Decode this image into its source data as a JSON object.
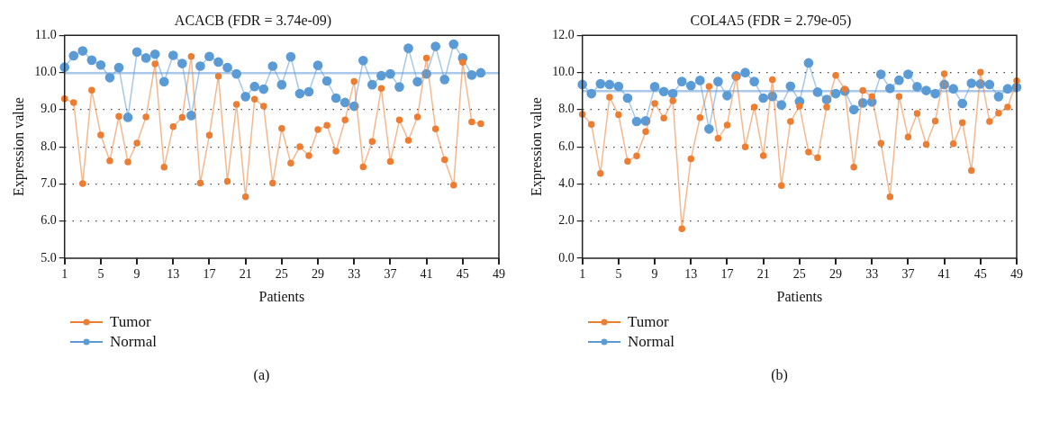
{
  "chart_data": [
    {
      "type": "line",
      "title": "ACACB (FDR = 3.74e-09)",
      "xlabel": "Patients",
      "ylabel": "Expression value",
      "categories": [
        "1",
        null,
        null,
        null,
        "5",
        null,
        null,
        null,
        "9",
        null,
        null,
        null,
        "13",
        null,
        null,
        null,
        "17",
        null,
        null,
        null,
        "21",
        null,
        null,
        null,
        "25",
        null,
        null,
        null,
        "29",
        null,
        null,
        null,
        "33",
        null,
        null,
        null,
        "37",
        null,
        null,
        null,
        "41",
        null,
        null,
        null,
        "45",
        null,
        null,
        null,
        "49"
      ],
      "series": [
        {
          "name": "Tumor",
          "color": "#ed7d31",
          "values": [
            9.29,
            9.19,
            7.01,
            9.52,
            8.32,
            7.62,
            8.82,
            7.59,
            8.1,
            8.8,
            10.23,
            7.45,
            8.54,
            8.79,
            10.43,
            7.02,
            8.31,
            9.9,
            7.07,
            9.14,
            6.65,
            9.28,
            9.09,
            7.02,
            8.49,
            7.56,
            8.0,
            7.76,
            8.46,
            8.58,
            7.88,
            8.72,
            9.76,
            7.46,
            8.14,
            9.57,
            7.6,
            8.72,
            8.17,
            8.8,
            10.39,
            8.48,
            7.65,
            6.97,
            10.27,
            8.67,
            8.62,
            null,
            null
          ]
        },
        {
          "name": "Normal",
          "color": "#5b9bd5",
          "values": [
            10.14,
            10.45,
            10.58,
            10.33,
            10.2,
            9.86,
            10.13,
            8.79,
            10.55,
            10.39,
            10.49,
            9.75,
            10.46,
            10.24,
            8.84,
            10.17,
            10.43,
            10.28,
            10.13,
            9.96,
            9.35,
            9.62,
            9.55,
            10.17,
            9.67,
            10.42,
            9.43,
            9.48,
            10.19,
            9.77,
            9.31,
            9.19,
            9.09,
            10.32,
            9.67,
            9.91,
            9.96,
            9.61,
            10.65,
            9.75,
            9.96,
            10.7,
            9.81,
            10.76,
            10.39,
            9.93,
            9.99,
            null,
            null
          ]
        }
      ],
      "ylim": [
        5,
        11
      ],
      "yticks": [
        {
          "value": 5,
          "label": "5.0"
        },
        {
          "value": 6,
          "label": "6.0"
        },
        {
          "value": 7,
          "label": "7.0"
        },
        {
          "value": 8,
          "label": "8.0"
        },
        {
          "value": 9,
          "label": "9.0"
        },
        {
          "value": 10,
          "label": "10.0"
        },
        {
          "value": 11,
          "label": "11.0"
        }
      ],
      "ref_lines": [
        {
          "axis": "y",
          "value": 9.98,
          "color": "#a9c8ea"
        }
      ],
      "grid": "y",
      "legend": "bottom left",
      "marker": "circle",
      "annotations": [
        "(a)"
      ]
    },
    {
      "type": "line",
      "title": "COL4A5 (FDR = 2.79e-05)",
      "xlabel": "Patients",
      "ylabel": "Expression value",
      "categories": [
        "1",
        null,
        null,
        null,
        "5",
        null,
        null,
        null,
        "9",
        null,
        null,
        null,
        "13",
        null,
        null,
        null,
        "17",
        null,
        null,
        null,
        "21",
        null,
        null,
        null,
        "25",
        null,
        null,
        null,
        "29",
        null,
        null,
        null,
        "33",
        null,
        null,
        null,
        "37",
        null,
        null,
        null,
        "41",
        null,
        null,
        null,
        "45",
        null,
        null,
        null,
        "49"
      ],
      "series": [
        {
          "name": "Tumor",
          "color": "#ed7d31",
          "values": [
            7.75,
            7.2,
            4.57,
            8.67,
            7.72,
            5.22,
            5.51,
            6.81,
            8.33,
            7.54,
            8.48,
            1.59,
            5.35,
            7.57,
            9.25,
            6.45,
            7.17,
            9.75,
            5.99,
            8.13,
            5.52,
            9.61,
            3.91,
            7.36,
            8.19,
            5.72,
            5.41,
            8.14,
            9.84,
            9.1,
            4.9,
            9.03,
            8.71,
            6.19,
            3.3,
            8.71,
            6.52,
            7.8,
            6.13,
            7.39,
            9.93,
            6.16,
            7.3,
            4.72,
            10.01,
            7.36,
            7.81,
            8.14,
            9.55
          ]
        },
        {
          "name": "Normal",
          "color": "#5b9bd5",
          "values": [
            9.35,
            8.86,
            9.39,
            9.35,
            9.25,
            8.62,
            7.36,
            7.39,
            9.23,
            8.97,
            8.86,
            9.51,
            9.29,
            9.57,
            6.96,
            9.51,
            8.75,
            9.81,
            9.99,
            9.51,
            8.62,
            8.71,
            8.25,
            9.26,
            8.44,
            10.51,
            8.94,
            8.54,
            8.86,
            9.0,
            8.0,
            8.36,
            8.41,
            9.9,
            9.14,
            9.58,
            9.9,
            9.23,
            9.03,
            8.86,
            9.35,
            9.12,
            8.33,
            9.42,
            9.38,
            9.35,
            8.7,
            9.12,
            9.2
          ]
        }
      ],
      "ylim": [
        0,
        12
      ],
      "yticks": [
        {
          "value": 0,
          "label": "0.0"
        },
        {
          "value": 2,
          "label": "2.0"
        },
        {
          "value": 4,
          "label": "4.0"
        },
        {
          "value": 6,
          "label": "6.0"
        },
        {
          "value": 8,
          "label": "8.0"
        },
        {
          "value": 10,
          "label": "10.0"
        },
        {
          "value": 12,
          "label": "12.0"
        }
      ],
      "ref_lines": [
        {
          "axis": "y",
          "value": 9.0,
          "color": "#a9c8ea"
        }
      ],
      "grid": "y",
      "legend": "bottom left",
      "marker": "circle",
      "annotations": [
        "(b)"
      ]
    }
  ]
}
